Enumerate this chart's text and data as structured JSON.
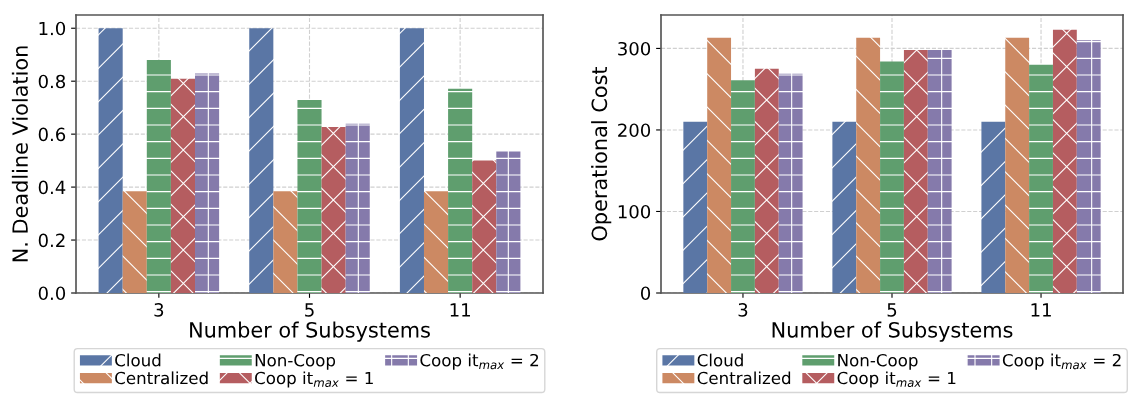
{
  "chart_data": [
    {
      "type": "bar",
      "xlabel": "Number of Subsystems",
      "ylabel": "N. Deadline Violation",
      "categories": [
        "3",
        "5",
        "11"
      ],
      "ylim": [
        0,
        1.05
      ],
      "yticks": [
        {
          "value": 0,
          "label": "0.0"
        },
        0.2,
        0.4,
        0.6,
        0.8,
        {
          "value": 1,
          "label": "1.0"
        }
      ],
      "grid": true,
      "legend": "bottom",
      "series": [
        {
          "name": "Cloud",
          "color": "#5a76a5",
          "values": [
            1.0,
            1.0,
            1.0
          ]
        },
        {
          "name": "Centralized",
          "color": "#cc8963",
          "values": [
            0.384,
            0.384,
            0.384
          ]
        },
        {
          "name": "Non-Coop",
          "color": "#5f9e6e",
          "values": [
            0.88,
            0.729,
            0.771
          ]
        },
        {
          "name": "Coop it$_{max}$ = 1",
          "color": "#b55d60",
          "values": [
            0.809,
            0.627,
            0.5
          ]
        },
        {
          "name": "Coop it$_{max}$ = 2",
          "color": "#857aab",
          "values": [
            0.829,
            0.639,
            0.534
          ]
        }
      ]
    },
    {
      "type": "bar",
      "xlabel": "Number of Subsystems",
      "ylabel": "Operational Cost",
      "categories": [
        "3",
        "5",
        "11"
      ],
      "ylim": [
        0,
        341
      ],
      "yticks": [
        0,
        100,
        200,
        300
      ],
      "grid": true,
      "legend": "bottom",
      "series": [
        {
          "name": "Cloud",
          "color": "#5a76a5",
          "values": [
            210,
            210,
            210
          ]
        },
        {
          "name": "Centralized",
          "color": "#cc8963",
          "values": [
            313,
            313,
            313
          ]
        },
        {
          "name": "Non-Coop",
          "color": "#5f9e6e",
          "values": [
            261,
            284,
            280
          ]
        },
        {
          "name": "Coop it$_{max}$ = 1",
          "color": "#b55d60",
          "values": [
            275,
            298,
            323
          ]
        },
        {
          "name": "Coop it$_{max}$ = 2",
          "color": "#857aab",
          "values": [
            269,
            298,
            310
          ]
        }
      ]
    }
  ]
}
